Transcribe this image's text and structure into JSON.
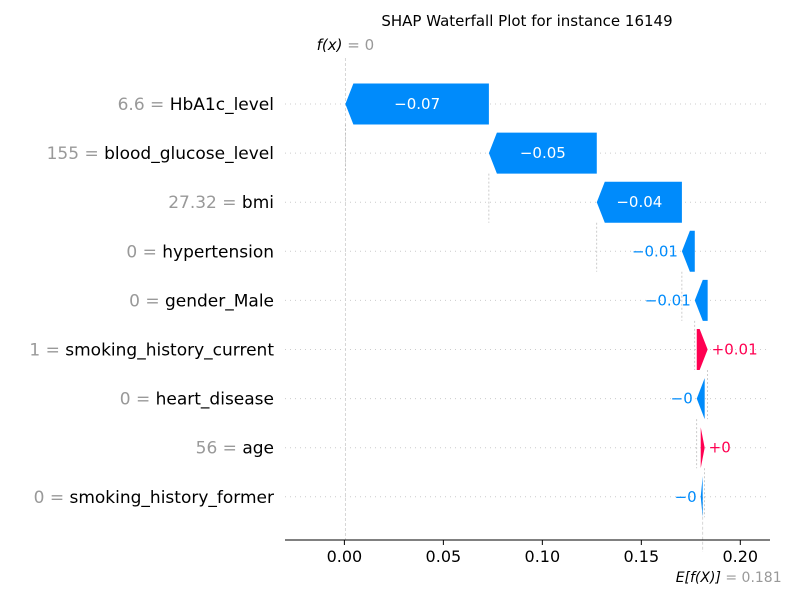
{
  "chart_data": {
    "type": "waterfall",
    "title": "SHAP Waterfall Plot for instance 16149",
    "fx": {
      "label": "f(x)",
      "value_text": "= 0",
      "value": 0
    },
    "ex": {
      "label": "E[f(X)]",
      "value_text": "= 0.181",
      "value": 0.181
    },
    "xlim": [
      -0.03,
      0.215
    ],
    "xticks": [
      0.0,
      0.05,
      0.1,
      0.15,
      0.2
    ],
    "xtick_labels": [
      "0.00",
      "0.05",
      "0.10",
      "0.15",
      "0.20"
    ],
    "features": [
      {
        "value": "6.6",
        "name": "HbA1c_level",
        "shap": -0.0725,
        "label": "−0.07"
      },
      {
        "value": "155",
        "name": "blood_glucose_level",
        "shap": -0.0545,
        "label": "−0.05"
      },
      {
        "value": "27.32",
        "name": "bmi",
        "shap": -0.043,
        "label": "−0.04"
      },
      {
        "value": "0",
        "name": "hypertension",
        "shap": -0.0065,
        "label": "−0.01"
      },
      {
        "value": "0",
        "name": "gender_Male",
        "shap": -0.0065,
        "label": "−0.01"
      },
      {
        "value": "1",
        "name": "smoking_history_current",
        "shap": 0.0055,
        "label": "+0.01"
      },
      {
        "value": "0",
        "name": "heart_disease",
        "shap": -0.004,
        "label": "−0"
      },
      {
        "value": "56",
        "name": "age",
        "shap": 0.002,
        "label": "+0"
      },
      {
        "value": "0",
        "name": "smoking_history_former",
        "shap": -0.001,
        "label": "−0"
      }
    ],
    "colors": {
      "negative": "#008bfb",
      "positive": "#ff0051"
    }
  }
}
